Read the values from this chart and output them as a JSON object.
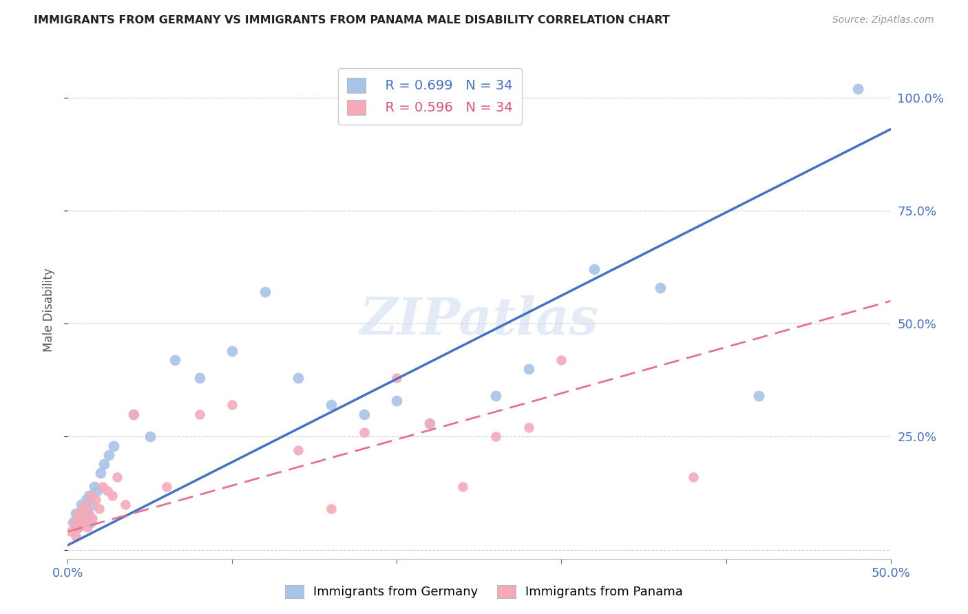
{
  "title": "IMMIGRANTS FROM GERMANY VS IMMIGRANTS FROM PANAMA MALE DISABILITY CORRELATION CHART",
  "source": "Source: ZipAtlas.com",
  "ylabel": "Male Disability",
  "xlim": [
    0.0,
    0.5
  ],
  "ylim": [
    -0.02,
    1.08
  ],
  "germany_R": 0.699,
  "germany_N": 34,
  "panama_R": 0.596,
  "panama_N": 34,
  "germany_color": "#a8c4e8",
  "panama_color": "#f5aab8",
  "germany_line_color": "#4472c4",
  "panama_line_color": "#e87090",
  "germany_line_x0": 0.0,
  "germany_line_y0": 0.01,
  "germany_line_x1": 0.5,
  "germany_line_y1": 0.93,
  "panama_line_x0": 0.0,
  "panama_line_y0": 0.04,
  "panama_line_x1": 0.5,
  "panama_line_y1": 0.55,
  "germany_scatter_x": [
    0.003,
    0.005,
    0.006,
    0.008,
    0.009,
    0.01,
    0.011,
    0.012,
    0.013,
    0.014,
    0.015,
    0.016,
    0.018,
    0.02,
    0.022,
    0.025,
    0.028,
    0.04,
    0.05,
    0.065,
    0.08,
    0.1,
    0.12,
    0.14,
    0.16,
    0.18,
    0.2,
    0.22,
    0.26,
    0.28,
    0.32,
    0.36,
    0.42,
    0.48
  ],
  "germany_scatter_y": [
    0.06,
    0.08,
    0.05,
    0.1,
    0.07,
    0.09,
    0.11,
    0.08,
    0.12,
    0.06,
    0.1,
    0.14,
    0.13,
    0.17,
    0.19,
    0.21,
    0.23,
    0.3,
    0.25,
    0.42,
    0.38,
    0.44,
    0.57,
    0.38,
    0.32,
    0.3,
    0.33,
    0.28,
    0.34,
    0.4,
    0.62,
    0.58,
    0.34,
    1.02
  ],
  "panama_scatter_x": [
    0.002,
    0.004,
    0.005,
    0.006,
    0.007,
    0.008,
    0.009,
    0.01,
    0.011,
    0.012,
    0.013,
    0.014,
    0.015,
    0.017,
    0.019,
    0.021,
    0.024,
    0.027,
    0.03,
    0.035,
    0.04,
    0.06,
    0.08,
    0.1,
    0.14,
    0.16,
    0.18,
    0.2,
    0.22,
    0.24,
    0.26,
    0.28,
    0.3,
    0.38
  ],
  "panama_scatter_y": [
    0.04,
    0.06,
    0.03,
    0.08,
    0.05,
    0.07,
    0.09,
    0.06,
    0.1,
    0.05,
    0.08,
    0.12,
    0.07,
    0.11,
    0.09,
    0.14,
    0.13,
    0.12,
    0.16,
    0.1,
    0.3,
    0.14,
    0.3,
    0.32,
    0.22,
    0.09,
    0.26,
    0.38,
    0.28,
    0.14,
    0.25,
    0.27,
    0.42,
    0.16
  ],
  "watermark": "ZIPatlas",
  "background_color": "#ffffff",
  "grid_color": "#cccccc"
}
